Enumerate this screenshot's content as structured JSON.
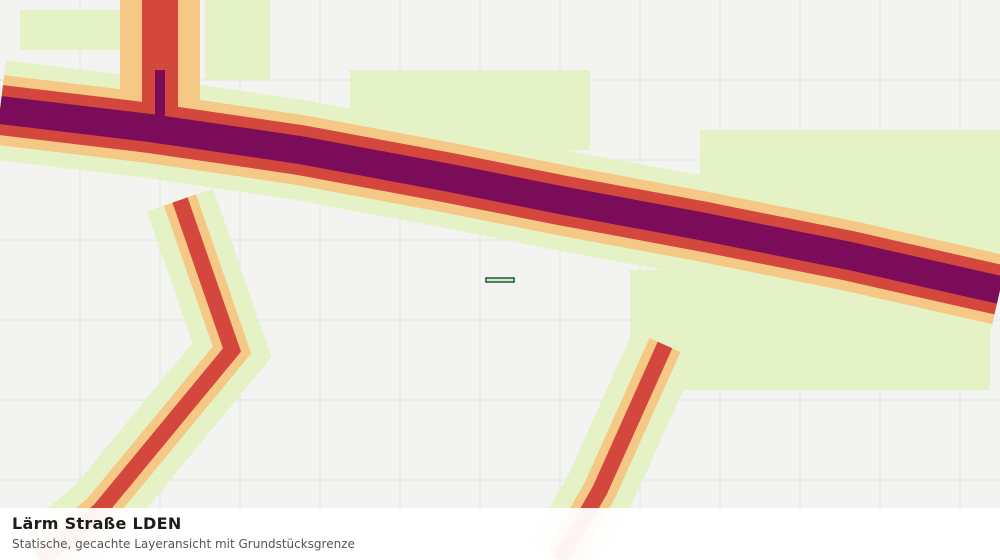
{
  "layer": {
    "title": "Lärm Straße LDEN",
    "subtitle": "Statische, gecachte Layeransicht mit Grundstücksgrenze"
  }
}
